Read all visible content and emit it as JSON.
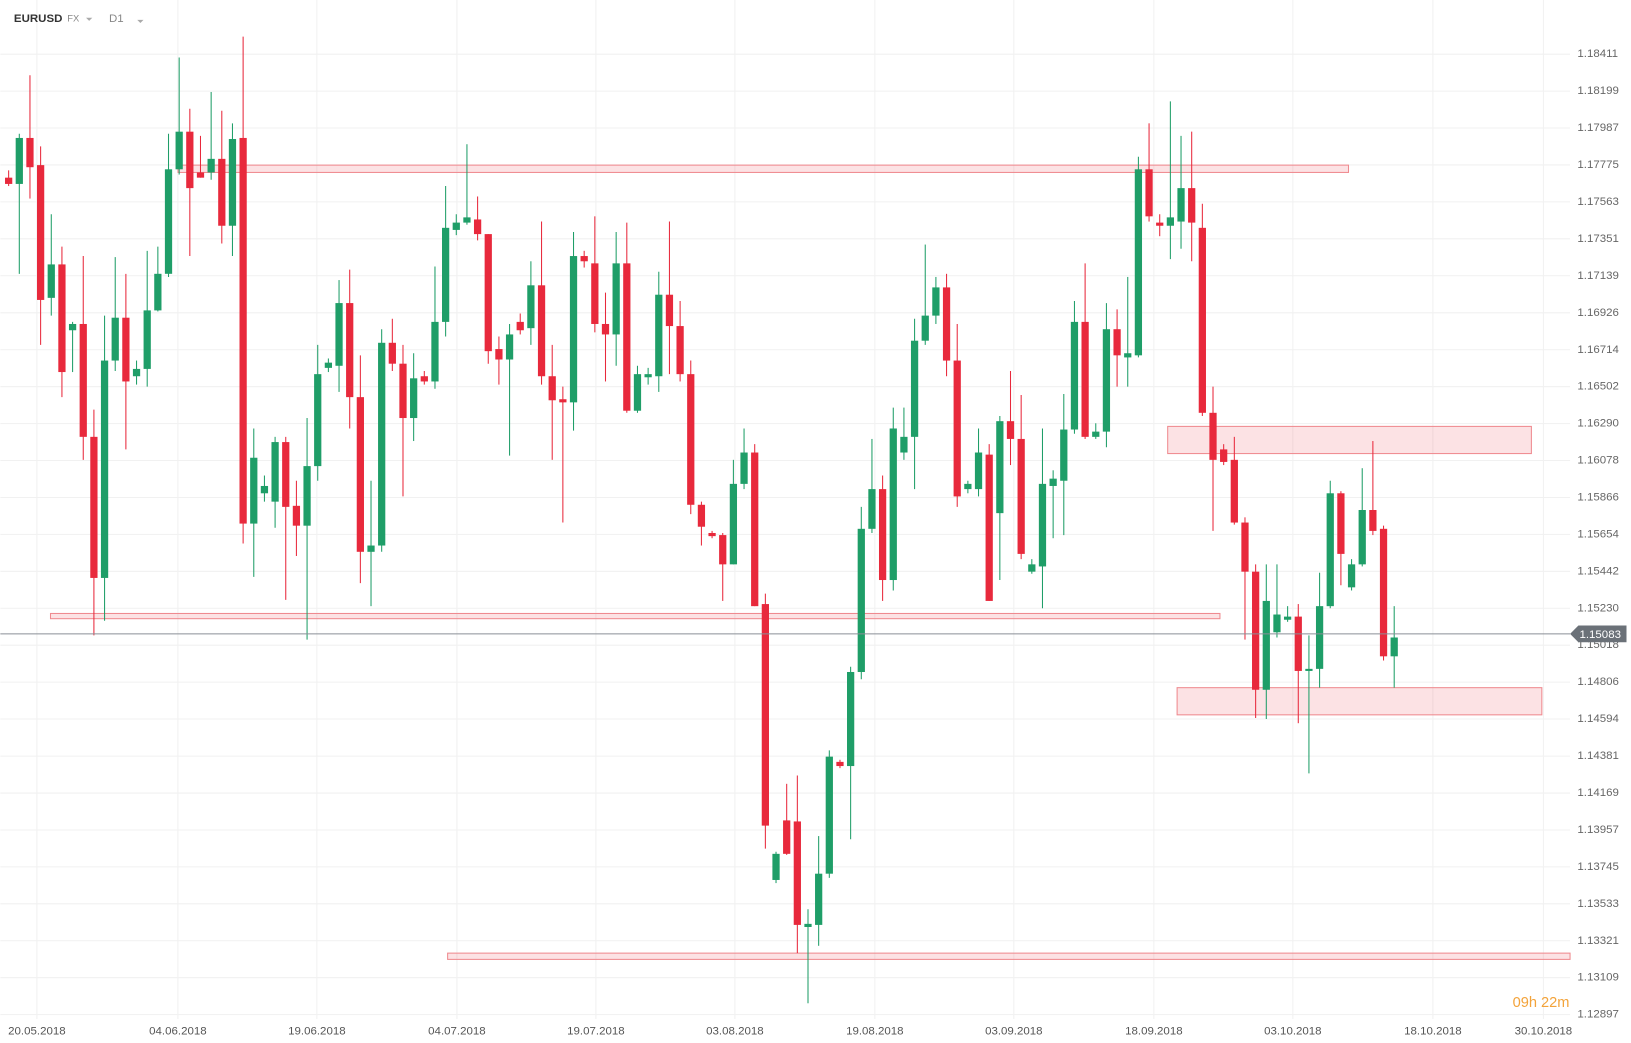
{
  "header": {
    "symbol": "EURUSD",
    "market": "FX",
    "timeframe": "D1"
  },
  "chart_data": {
    "type": "candlestick",
    "up_color": "#1f9e68",
    "down_color": "#e8293c",
    "xlim": [
      -0.78,
      146.5
    ],
    "ylim": [
      1.12872,
      1.18722
    ],
    "grid": true,
    "xticks": [
      {
        "value": 2.65,
        "label": "20.05.2018"
      },
      {
        "value": 15.88,
        "label": "04.06.2018"
      },
      {
        "value": 28.92,
        "label": "19.06.2018"
      },
      {
        "value": 42.06,
        "label": "04.07.2018"
      },
      {
        "value": 55.1,
        "label": "19.07.2018"
      },
      {
        "value": 68.14,
        "label": "03.08.2018"
      },
      {
        "value": 81.27,
        "label": "19.08.2018"
      },
      {
        "value": 94.31,
        "label": "03.09.2018"
      },
      {
        "value": 107.45,
        "label": "18.09.2018"
      },
      {
        "value": 120.49,
        "label": "03.10.2018"
      },
      {
        "value": 133.63,
        "label": "18.10.2018"
      },
      {
        "value": 144.0,
        "label": "30.10.2018"
      }
    ],
    "yticks": [
      1.18411,
      1.18199,
      1.17987,
      1.17775,
      1.17563,
      1.17351,
      1.17139,
      1.16926,
      1.16714,
      1.16502,
      {
        "value": 1.1629,
        "label": "1.16290"
      },
      1.16078,
      1.15866,
      1.15654,
      1.15442,
      {
        "value": 1.1523,
        "label": "1.15230"
      },
      1.15018,
      1.14806,
      1.14594,
      1.14381,
      1.14169,
      1.13957,
      1.13745,
      1.13533,
      1.13321,
      1.13109,
      1.12897
    ],
    "last_price": 1.15083,
    "countdown": "09h 22m",
    "ohlc": [
      [
        1.17702,
        1.17744,
        1.17654,
        1.17666
      ],
      [
        1.17666,
        1.17954,
        1.1715,
        1.1793
      ],
      [
        1.1793,
        1.1829,
        1.17582,
        1.17762
      ],
      [
        1.17774,
        1.17882,
        1.16742,
        1.17
      ],
      [
        1.17012,
        1.17492,
        1.1691,
        1.17204
      ],
      [
        1.17204,
        1.17306,
        1.16442,
        1.16586
      ],
      [
        1.16826,
        1.16874,
        1.16586,
        1.16862
      ],
      [
        1.16862,
        1.17252,
        1.16082,
        1.16214
      ],
      [
        1.16214,
        1.1637,
        1.15074,
        1.15404
      ],
      [
        1.15404,
        1.1691,
        1.15158,
        1.16652
      ],
      [
        1.16652,
        1.17246,
        1.16592,
        1.16898
      ],
      [
        1.16898,
        1.1715,
        1.16142,
        1.16532
      ],
      [
        1.16562,
        1.16652,
        1.16514,
        1.16604
      ],
      [
        1.16604,
        1.17282,
        1.16502,
        1.1694
      ],
      [
        1.1694,
        1.17306,
        1.16934,
        1.1715
      ],
      [
        1.1715,
        1.17954,
        1.17132,
        1.1775
      ],
      [
        1.1775,
        1.18392,
        1.1772,
        1.17966
      ],
      [
        1.17966,
        1.18098,
        1.17252,
        1.17642
      ],
      [
        1.17732,
        1.17942,
        1.17702,
        1.17702
      ],
      [
        1.17732,
        1.18194,
        1.1769,
        1.1781
      ],
      [
        1.1781,
        1.18086,
        1.17324,
        1.17426
      ],
      [
        1.17426,
        1.18014,
        1.17252,
        1.17924
      ],
      [
        1.1793,
        1.18512,
        1.15602,
        1.15716
      ],
      [
        1.15716,
        1.16262,
        1.1541,
        1.16094
      ],
      [
        1.1589,
        1.15992,
        1.15842,
        1.15932
      ],
      [
        1.15842,
        1.16214,
        1.15692,
        1.16184
      ],
      [
        1.16184,
        1.16214,
        1.15278,
        1.15812
      ],
      [
        1.15818,
        1.15962,
        1.1553,
        1.15704
      ],
      [
        1.15704,
        1.16322,
        1.1505,
        1.16046
      ],
      [
        1.16046,
        1.16742,
        1.15962,
        1.16574
      ],
      [
        1.1661,
        1.16664,
        1.16586,
        1.1664
      ],
      [
        1.16622,
        1.17114,
        1.16472,
        1.16982
      ],
      [
        1.16982,
        1.17174,
        1.16262,
        1.16442
      ],
      [
        1.16442,
        1.16682,
        1.15374,
        1.15554
      ],
      [
        1.15554,
        1.15962,
        1.15242,
        1.1559
      ],
      [
        1.1559,
        1.16832,
        1.15554,
        1.16754
      ],
      [
        1.16754,
        1.16892,
        1.16592,
        1.16634
      ],
      [
        1.16634,
        1.16742,
        1.15872,
        1.16322
      ],
      [
        1.16322,
        1.16694,
        1.1619,
        1.1655
      ],
      [
        1.16562,
        1.16592,
        1.16514,
        1.16532
      ],
      [
        1.16532,
        1.17192,
        1.1649,
        1.16874
      ],
      [
        1.16874,
        1.17654,
        1.1679,
        1.17414
      ],
      [
        1.17402,
        1.17492,
        1.17372,
        1.17444
      ],
      [
        1.17444,
        1.17894,
        1.17432,
        1.17474
      ],
      [
        1.17462,
        1.17594,
        1.17342,
        1.17378
      ],
      [
        1.17378,
        1.17378,
        1.16634,
        1.16706
      ],
      [
        1.16718,
        1.1679,
        1.16514,
        1.16658
      ],
      [
        1.16658,
        1.16862,
        1.16106,
        1.16802
      ],
      [
        1.16874,
        1.16922,
        1.16802,
        1.16826
      ],
      [
        1.16838,
        1.17222,
        1.16742,
        1.17084
      ],
      [
        1.17084,
        1.1745,
        1.16514,
        1.16562
      ],
      [
        1.16562,
        1.16742,
        1.16082,
        1.16424
      ],
      [
        1.1643,
        1.16502,
        1.15722,
        1.16412
      ],
      [
        1.16412,
        1.1739,
        1.1625,
        1.17252
      ],
      [
        1.17252,
        1.17282,
        1.17186,
        1.17222
      ],
      [
        1.1721,
        1.1748,
        1.16814,
        1.16862
      ],
      [
        1.16862,
        1.17042,
        1.16532,
        1.16802
      ],
      [
        1.16802,
        1.1739,
        1.16622,
        1.1721
      ],
      [
        1.1721,
        1.17444,
        1.16352,
        1.16364
      ],
      [
        1.16364,
        1.16622,
        1.16352,
        1.16574
      ],
      [
        1.16556,
        1.1661,
        1.16514,
        1.16574
      ],
      [
        1.16562,
        1.17162,
        1.16472,
        1.1703
      ],
      [
        1.1703,
        1.1745,
        1.16574,
        1.1685
      ],
      [
        1.1685,
        1.16994,
        1.16532,
        1.16574
      ],
      [
        1.16574,
        1.16652,
        1.1577,
        1.15824
      ],
      [
        1.15824,
        1.15842,
        1.1559,
        1.15698
      ],
      [
        1.15662,
        1.15674,
        1.15632,
        1.15644
      ],
      [
        1.1565,
        1.15662,
        1.15272,
        1.15482
      ],
      [
        1.15482,
        1.16082,
        1.15482,
        1.15944
      ],
      [
        1.15944,
        1.16262,
        1.15914,
        1.16124
      ],
      [
        1.16124,
        1.16172,
        1.15242,
        1.15242
      ],
      [
        1.15254,
        1.15314,
        1.1385,
        1.13982
      ],
      [
        1.1367,
        1.13832,
        1.13652,
        1.1382
      ],
      [
        1.14012,
        1.14222,
        1.13814,
        1.1382
      ],
      [
        1.14006,
        1.1427,
        1.1325,
        1.13412
      ],
      [
        1.134,
        1.13502,
        1.12962,
        1.13418
      ],
      [
        1.13412,
        1.13922,
        1.13292,
        1.13706
      ],
      [
        1.13706,
        1.14414,
        1.13682,
        1.14378
      ],
      [
        1.14348,
        1.1436,
        1.14312,
        1.14324
      ],
      [
        1.14324,
        1.14894,
        1.13904,
        1.14864
      ],
      [
        1.14864,
        1.15812,
        1.14822,
        1.15686
      ],
      [
        1.15686,
        1.16202,
        1.15662,
        1.15914
      ],
      [
        1.15914,
        1.15992,
        1.15272,
        1.15392
      ],
      [
        1.15392,
        1.16382,
        1.15332,
        1.16262
      ],
      [
        1.16124,
        1.16382,
        1.16082,
        1.16214
      ],
      [
        1.16214,
        1.16892,
        1.15914,
        1.16766
      ],
      [
        1.16766,
        1.17318,
        1.16742,
        1.1691
      ],
      [
        1.1691,
        1.17132,
        1.16862,
        1.17072
      ],
      [
        1.17072,
        1.1715,
        1.16562,
        1.16652
      ],
      [
        1.16652,
        1.16862,
        1.15812,
        1.15872
      ],
      [
        1.15914,
        1.15962,
        1.1589,
        1.15944
      ],
      [
        1.15914,
        1.16262,
        1.15872,
        1.16124
      ],
      [
        1.16112,
        1.16172,
        1.15272,
        1.15272
      ],
      [
        1.15776,
        1.16334,
        1.15392,
        1.16304
      ],
      [
        1.16304,
        1.16592,
        1.16052,
        1.16202
      ],
      [
        1.16202,
        1.16454,
        1.15512,
        1.15542
      ],
      [
        1.1544,
        1.15512,
        1.15428,
        1.15482
      ],
      [
        1.1547,
        1.16262,
        1.1523,
        1.15944
      ],
      [
        1.15932,
        1.16022,
        1.15632,
        1.15974
      ],
      [
        1.15962,
        1.1646,
        1.1565,
        1.16256
      ],
      [
        1.16256,
        1.16994,
        1.16232,
        1.16874
      ],
      [
        1.16874,
        1.1721,
        1.16202,
        1.16214
      ],
      [
        1.16214,
        1.16292,
        1.16202,
        1.16244
      ],
      [
        1.16244,
        1.16982,
        1.16154,
        1.16832
      ],
      [
        1.16832,
        1.16946,
        1.16502,
        1.16682
      ],
      [
        1.1667,
        1.17132,
        1.16502,
        1.16694
      ],
      [
        1.16682,
        1.17822,
        1.1667,
        1.1775
      ],
      [
        1.1775,
        1.18014,
        1.1745,
        1.1748
      ],
      [
        1.17444,
        1.17492,
        1.17366,
        1.17426
      ],
      [
        1.17426,
        1.1814,
        1.17234,
        1.17474
      ],
      [
        1.1745,
        1.17942,
        1.17294,
        1.17642
      ],
      [
        1.17642,
        1.17966,
        1.17222,
        1.17444
      ],
      [
        1.17414,
        1.17552,
        1.16334,
        1.16352
      ],
      [
        1.16352,
        1.16502,
        1.15674,
        1.16082
      ],
      [
        1.16142,
        1.16172,
        1.16052,
        1.1607
      ],
      [
        1.16082,
        1.16214,
        1.1571,
        1.15722
      ],
      [
        1.15722,
        1.15752,
        1.1505,
        1.1544
      ],
      [
        1.1544,
        1.15482,
        1.146,
        1.14762
      ],
      [
        1.14762,
        1.15482,
        1.14594,
        1.15272
      ],
      [
        1.15092,
        1.15482,
        1.15062,
        1.15194
      ],
      [
        1.15164,
        1.15242,
        1.15152,
        1.15182
      ],
      [
        1.15182,
        1.15254,
        1.1457,
        1.1487
      ],
      [
        1.1487,
        1.15074,
        1.14282,
        1.14882
      ],
      [
        1.14882,
        1.15434,
        1.14774,
        1.15242
      ],
      [
        1.15242,
        1.15962,
        1.1523,
        1.1589
      ],
      [
        1.1589,
        1.15902,
        1.15362,
        1.15542
      ],
      [
        1.1535,
        1.15512,
        1.15332,
        1.15482
      ],
      [
        1.15482,
        1.16034,
        1.1547,
        1.15794
      ],
      [
        1.15794,
        1.1619,
        1.1565,
        1.15674
      ],
      [
        1.15686,
        1.15704,
        1.1493,
        1.14954
      ],
      [
        1.14954,
        1.15242,
        1.14774,
        1.15062
      ]
    ]
  }
}
